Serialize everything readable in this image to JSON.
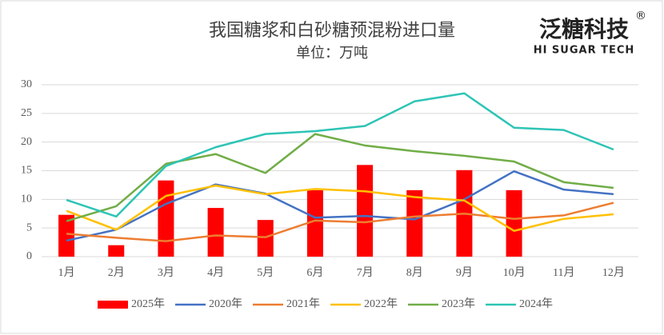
{
  "chart_data": {
    "type": "bar",
    "title": "我国糖浆和白砂糖预混粉进口量",
    "subtitle": "单位：万吨",
    "logo": {
      "name": "泛糖科技",
      "mark": "®",
      "tagline": "HI SUGAR TECH"
    },
    "categories": [
      "1月",
      "2月",
      "3月",
      "4月",
      "5月",
      "6月",
      "7月",
      "8月",
      "9月",
      "10月",
      "11月",
      "12月"
    ],
    "ylim": [
      0,
      30
    ],
    "yticks": [
      0,
      5,
      10,
      15,
      20,
      25,
      30
    ],
    "grid": true,
    "legend": "bottom",
    "series": [
      {
        "name": "2025年",
        "type": "bar",
        "color": "#ff0000",
        "values": [
          7.3,
          2.0,
          13.3,
          8.5,
          6.4,
          11.6,
          16.0,
          11.6,
          15.1,
          11.6,
          null,
          null
        ]
      },
      {
        "name": "2020年",
        "type": "line",
        "color": "#4472c4",
        "values": [
          2.8,
          4.7,
          9.2,
          12.6,
          11.0,
          6.8,
          7.1,
          6.5,
          10.0,
          14.9,
          11.7,
          10.9
        ]
      },
      {
        "name": "2021年",
        "type": "line",
        "color": "#ed7d31",
        "values": [
          4.0,
          3.3,
          2.7,
          3.7,
          3.4,
          6.3,
          6.0,
          7.0,
          7.5,
          6.6,
          7.2,
          9.4
        ]
      },
      {
        "name": "2022年",
        "type": "line",
        "color": "#ffc000",
        "values": [
          8.0,
          4.7,
          10.6,
          12.4,
          10.9,
          11.8,
          11.4,
          10.4,
          9.8,
          4.5,
          6.6,
          7.4
        ]
      },
      {
        "name": "2023年",
        "type": "line",
        "color": "#70ad47",
        "values": [
          6.2,
          8.8,
          16.2,
          17.9,
          14.6,
          21.4,
          19.4,
          18.4,
          17.6,
          16.6,
          13.0,
          12.0
        ]
      },
      {
        "name": "2024年",
        "type": "line",
        "color": "#2ec4b6",
        "values": [
          9.9,
          7.0,
          15.8,
          19.1,
          21.4,
          21.9,
          22.8,
          27.1,
          28.5,
          22.5,
          22.1,
          18.7
        ]
      }
    ]
  }
}
